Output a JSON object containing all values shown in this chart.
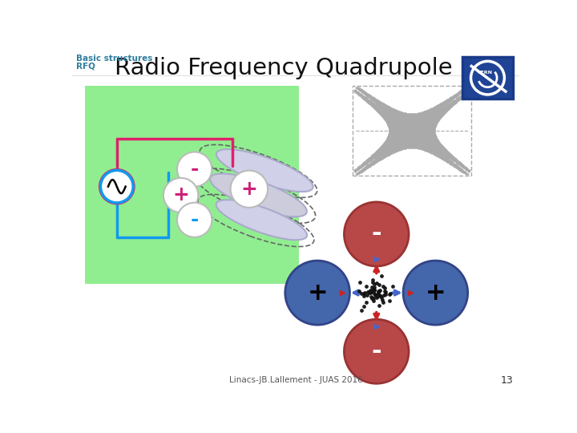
{
  "title": "Radio Frequency Quadrupole",
  "subtitle_line1": "Basic structures",
  "subtitle_line2": "RFQ",
  "subtitle_color": "#2e7d9e",
  "title_color": "#111111",
  "footer_text": "Linacs-JB.Lallement - JUAS 2016",
  "footer_number": "13",
  "bg_color": "#ffffff",
  "green_bg": "#90ee90",
  "pole_neg_color": "#b84848",
  "pole_pos_color": "#4466aa",
  "wire_red": "#e0206a",
  "wire_blue": "#1199ee",
  "rod_fill": "#d0d0e8",
  "rod_edge": "#aaaacc",
  "cap_fill": "#ffffff",
  "cap_edge": "#bbbbbb",
  "sign_red": "#cc2277",
  "sign_blue": "#1199ee",
  "sign_black": "#000000",
  "arrow_red": "#cc2222",
  "arrow_blue": "#4466cc",
  "dot_color": "#111111",
  "field_dot_color": "#aaaaaa",
  "cern_blue": "#1a3a88",
  "cern_bg": "#1f4496"
}
